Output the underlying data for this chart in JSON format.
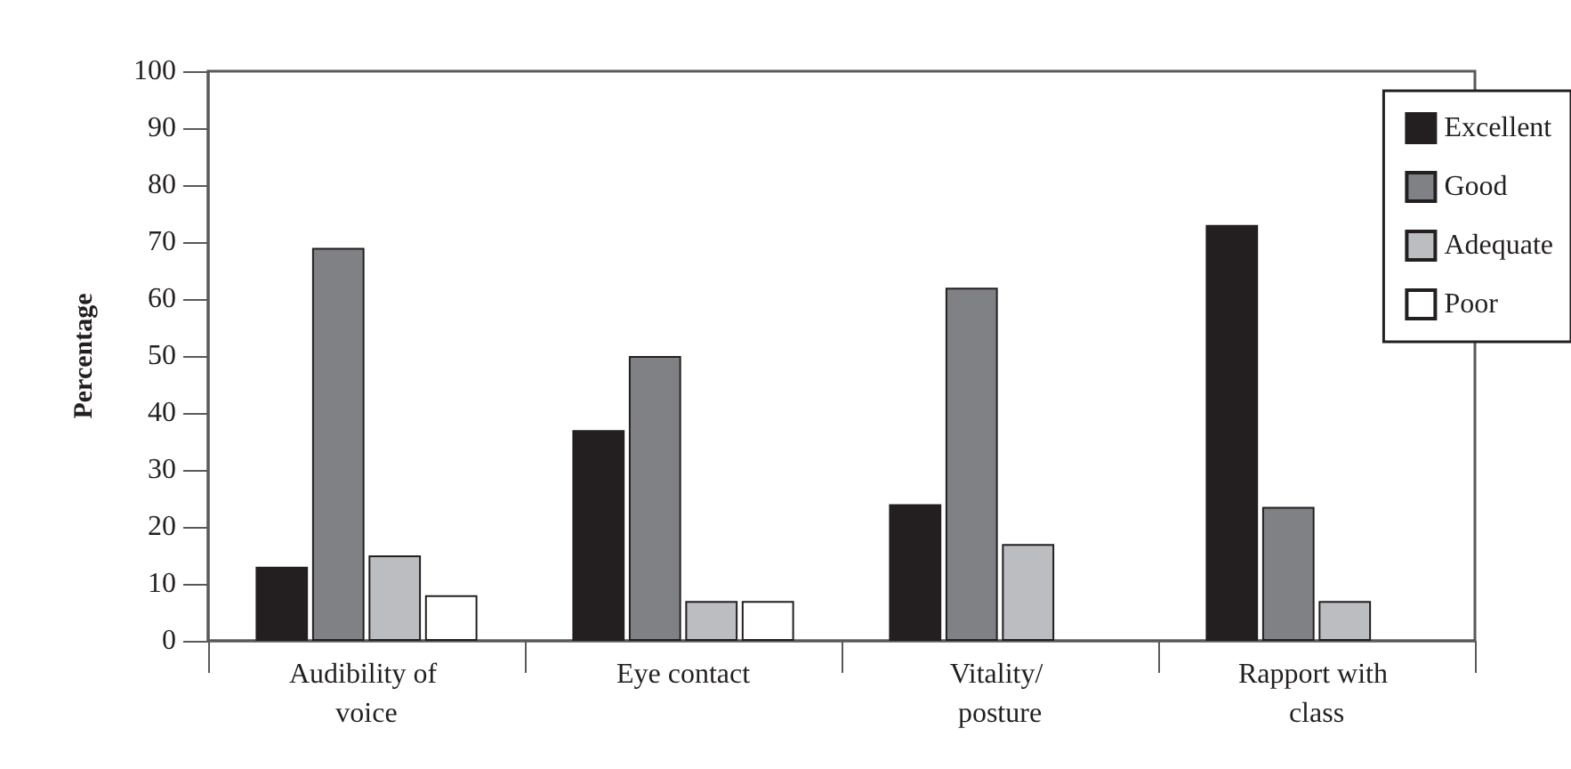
{
  "chart_data": {
    "type": "bar",
    "ylabel": "Percentage",
    "categories": [
      "Audibility of voice",
      "Eye contact",
      "Vitality/ posture",
      "Rapport with class"
    ],
    "series": [
      {
        "name": "Excellent",
        "color": "#231f20",
        "values": [
          13,
          37,
          24,
          73
        ]
      },
      {
        "name": "Good",
        "color": "#808184",
        "values": [
          69,
          50,
          62,
          23.5
        ]
      },
      {
        "name": "Adequate",
        "color": "#bcbdc0",
        "values": [
          15,
          7,
          17,
          7
        ]
      },
      {
        "name": "Poor",
        "color": "#ffffff",
        "values": [
          8,
          7,
          null,
          null
        ]
      }
    ],
    "ylim": [
      0,
      100
    ],
    "yticks": [
      0,
      10,
      20,
      30,
      40,
      50,
      60,
      70,
      80,
      90,
      100
    ],
    "grid": false,
    "legend": "top right"
  }
}
